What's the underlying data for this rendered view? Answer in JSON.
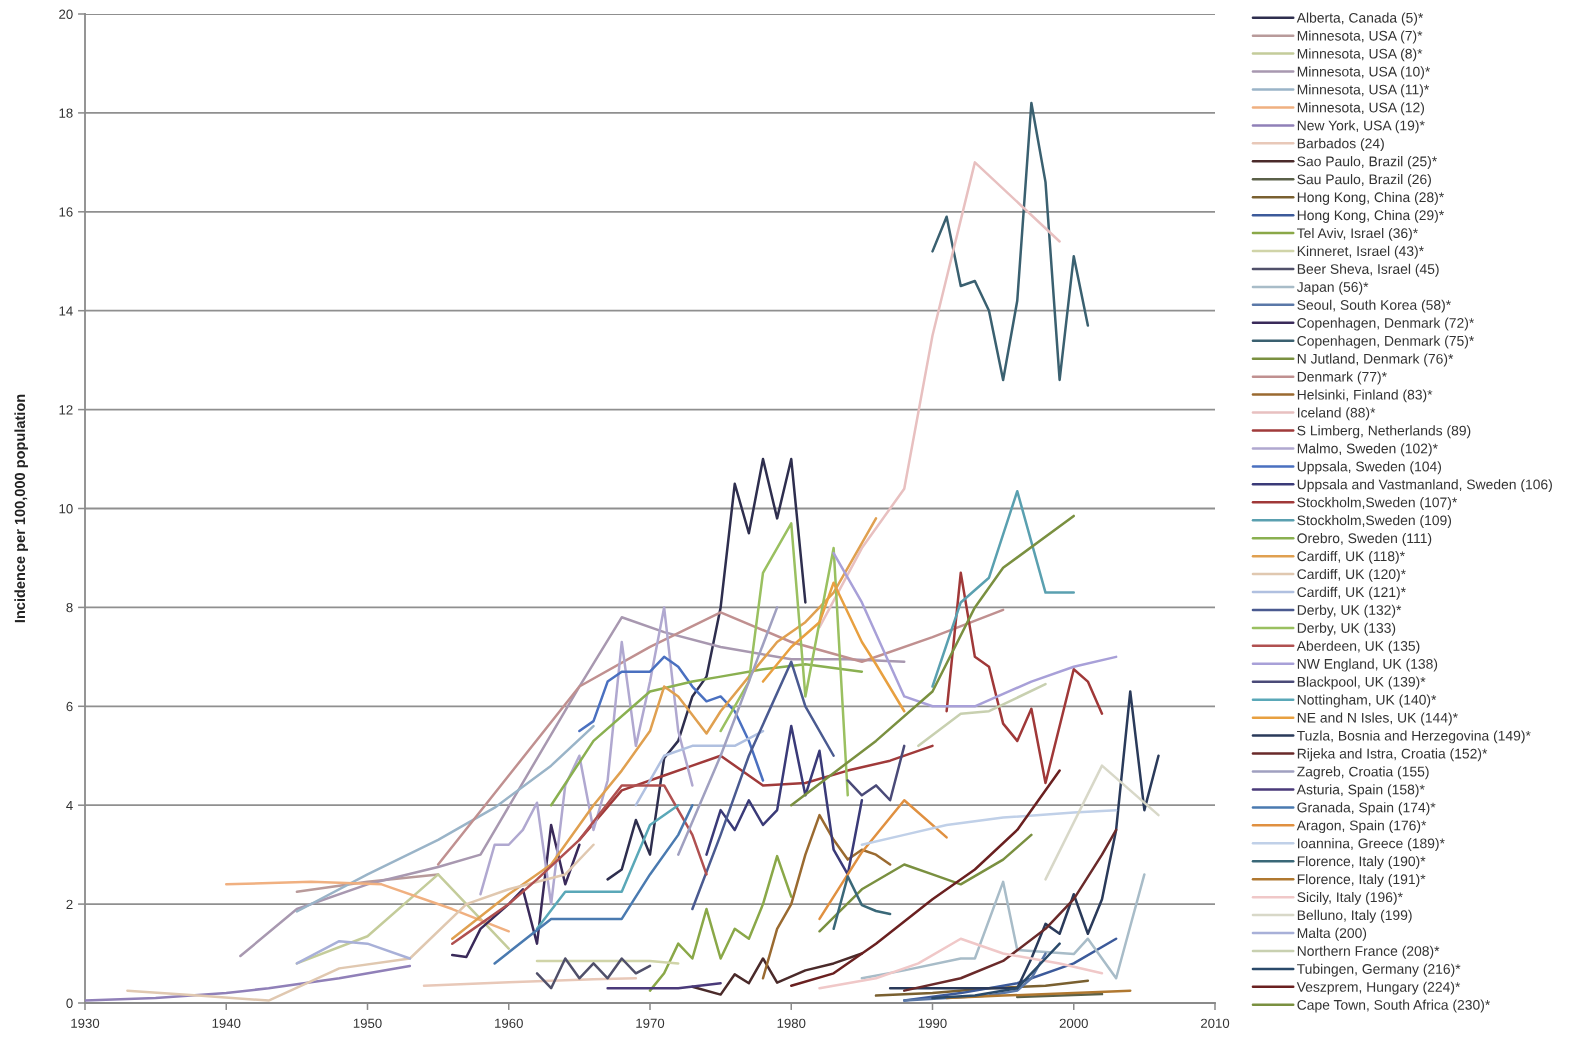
{
  "chart_data": {
    "type": "line",
    "ylabel": "Incidence per 100,000 population",
    "xlim": [
      1930,
      2010
    ],
    "xticks": [
      1930,
      1940,
      1950,
      1960,
      1970,
      1980,
      1990,
      2000,
      2010
    ],
    "ylim": [
      0,
      20
    ],
    "yticks": [
      0,
      2,
      4,
      6,
      8,
      10,
      12,
      14,
      16,
      18,
      20
    ],
    "grid": "y",
    "legend": "right",
    "line_style": "solid",
    "series": [
      {
        "name": "Alberta, Canada (5)*",
        "color": "#2e2e4e",
        "x": [
          1967,
          1968,
          1969,
          1970,
          1971,
          1972,
          1973,
          1974,
          1975,
          1976,
          1977,
          1978,
          1979,
          1980,
          1981
        ],
        "values": [
          2.5,
          2.7,
          3.7,
          3.0,
          4.95,
          5.3,
          6.2,
          6.6,
          8.0,
          10.5,
          9.5,
          11.0,
          9.8,
          11.0,
          8.1
        ]
      },
      {
        "name": "Minnesota, USA (7)*",
        "color": "#b89a9a",
        "x": [
          1945,
          1950,
          1955
        ],
        "values": [
          2.25,
          2.45,
          2.6
        ]
      },
      {
        "name": "Minnesota, USA (8)*",
        "color": "#c4cc9a",
        "x": [
          1945,
          1950,
          1955,
          1960
        ],
        "values": [
          0.8,
          1.35,
          2.6,
          1.1
        ]
      },
      {
        "name": "Minnesota, USA (10)*",
        "color": "#a898b0",
        "x": [
          1941,
          1945,
          1950,
          1955,
          1958,
          1965,
          1968,
          1971,
          1975,
          1980,
          1984,
          1988
        ],
        "values": [
          0.95,
          1.9,
          2.4,
          2.75,
          3.0,
          6.4,
          7.8,
          7.5,
          7.2,
          6.95,
          6.95,
          6.9
        ]
      },
      {
        "name": "Minnesota, USA (11)*",
        "color": "#9ab4c8",
        "x": [
          1945,
          1950,
          1955,
          1959,
          1963,
          1966
        ],
        "values": [
          1.85,
          2.6,
          3.3,
          3.95,
          4.8,
          5.6
        ]
      },
      {
        "name": "Minnesota, USA (12)",
        "color": "#f0b080",
        "x": [
          1940,
          1946,
          1951,
          1956,
          1960
        ],
        "values": [
          2.4,
          2.45,
          2.4,
          1.9,
          1.45
        ]
      },
      {
        "name": "New York, USA (19)*",
        "color": "#9080b8",
        "x": [
          1930,
          1935,
          1940,
          1943,
          1948,
          1953
        ],
        "values": [
          0.05,
          0.1,
          0.2,
          0.3,
          0.5,
          0.75
        ]
      },
      {
        "name": "Barbados (24)",
        "color": "#e8c8b8",
        "x": [
          1954,
          1960,
          1966,
          1969
        ],
        "values": [
          0.35,
          0.42,
          0.48,
          0.5
        ]
      },
      {
        "name": "Sao Paulo, Brazil (25)*",
        "color": "#4a2a2a",
        "x": [
          1973,
          1975,
          1976,
          1977,
          1978,
          1979,
          1981,
          1983,
          1985
        ],
        "values": [
          0.33,
          0.17,
          0.58,
          0.4,
          0.9,
          0.41,
          0.66,
          0.8,
          1.0
        ]
      },
      {
        "name": "Sau Paulo, Brazil (26)",
        "color": "#5a6048",
        "x": [
          1996,
          1999,
          2002
        ],
        "values": [
          0.12,
          0.15,
          0.18
        ]
      },
      {
        "name": "Hong Kong, China (28)*",
        "color": "#7a6030",
        "x": [
          1986,
          1990,
          1994,
          1998,
          2001
        ],
        "values": [
          0.15,
          0.2,
          0.3,
          0.35,
          0.45
        ]
      },
      {
        "name": "Hong Kong, China (29)*",
        "color": "#3c5a9a",
        "x": [
          1988,
          1992,
          1996,
          2000,
          2003
        ],
        "values": [
          0.05,
          0.2,
          0.4,
          0.8,
          1.3
        ]
      },
      {
        "name": "Tel Aviv, Israel (36)*",
        "color": "#8aa848",
        "x": [
          1970,
          1971,
          1972,
          1973,
          1974,
          1975,
          1976,
          1977,
          1978,
          1979,
          1980
        ],
        "values": [
          0.25,
          0.6,
          1.2,
          0.9,
          1.9,
          0.9,
          1.5,
          1.3,
          2.0,
          2.97,
          2.15
        ]
      },
      {
        "name": "Kinneret, Israel (43)*",
        "color": "#d0d4a8",
        "x": [
          1962,
          1966,
          1970,
          1972
        ],
        "values": [
          0.85,
          0.85,
          0.85,
          0.8
        ]
      },
      {
        "name": "Beer Sheva, Israel (45)",
        "color": "#50506a",
        "x": [
          1962,
          1963,
          1964,
          1965,
          1966,
          1967,
          1968,
          1969,
          1970
        ],
        "values": [
          0.6,
          0.3,
          0.9,
          0.5,
          0.8,
          0.5,
          0.9,
          0.6,
          0.75
        ]
      },
      {
        "name": "Japan (56)*",
        "color": "#a8bcc8",
        "x": [
          1985,
          1988,
          1992,
          1993,
          1995,
          1996,
          2000,
          2001,
          2003,
          2005
        ],
        "values": [
          0.5,
          0.66,
          0.9,
          0.9,
          2.45,
          1.07,
          0.99,
          1.3,
          0.5,
          2.6
        ]
      },
      {
        "name": "Seoul, South Korea (58)*",
        "color": "#5a78a8",
        "x": [
          1988,
          1991,
          1994,
          1996,
          1997,
          1998
        ],
        "values": [
          0.05,
          0.1,
          0.15,
          0.25,
          0.5,
          1.0
        ]
      },
      {
        "name": "Copenhagen, Denmark (72)*",
        "color": "#3a2a5a",
        "x": [
          1956,
          1957,
          1958,
          1960,
          1961,
          1962,
          1963,
          1964,
          1965
        ],
        "values": [
          0.97,
          0.93,
          1.5,
          2.0,
          2.3,
          1.2,
          3.6,
          2.4,
          3.2
        ]
      },
      {
        "name": "Copenhagen, Denmark (75)*",
        "color": "#3a6070",
        "x": [
          1990,
          1991,
          1992,
          1993,
          1994,
          1995,
          1996,
          1997,
          1998,
          1999,
          2000,
          2001
        ],
        "values": [
          15.2,
          15.9,
          14.5,
          14.6,
          14.0,
          12.6,
          14.2,
          18.2,
          16.6,
          12.6,
          15.1,
          13.7
        ]
      },
      {
        "name": "N Jutland, Denmark (76)*",
        "color": "#7a9040",
        "x": [
          1982,
          1985,
          1988,
          1990,
          1992,
          1995,
          1997
        ],
        "values": [
          1.45,
          2.3,
          2.8,
          2.6,
          2.4,
          2.9,
          3.4
        ]
      },
      {
        "name": "Denmark (77)*",
        "color": "#c09090",
        "x": [
          1955,
          1960,
          1965,
          1970,
          1975,
          1980,
          1985,
          1990,
          1995
        ],
        "values": [
          2.8,
          4.6,
          6.4,
          7.2,
          7.9,
          7.3,
          6.9,
          7.4,
          7.95
        ]
      },
      {
        "name": "Helsinki, Finland (83)*",
        "color": "#9a6a30",
        "x": [
          1978,
          1979,
          1980,
          1981,
          1982,
          1983,
          1984,
          1985,
          1986,
          1987
        ],
        "values": [
          0.5,
          1.5,
          2.0,
          3.0,
          3.8,
          3.3,
          2.9,
          3.1,
          3.0,
          2.8
        ]
      },
      {
        "name": "Iceland (88)*",
        "color": "#e8c0c0",
        "x": [
          1982,
          1985,
          1988,
          1990,
          1993,
          1999
        ],
        "values": [
          7.6,
          9.2,
          10.4,
          13.5,
          17.0,
          15.4
        ]
      },
      {
        "name": "S Limberg, Netherlands (89)",
        "color": "#a03a3a",
        "x": [
          1965,
          1968,
          1971,
          1973,
          1975,
          1978,
          1981,
          1984,
          1987,
          1990
        ],
        "values": [
          3.3,
          4.3,
          4.6,
          4.8,
          5.0,
          4.4,
          4.45,
          4.7,
          4.9,
          5.2
        ]
      },
      {
        "name": "Malmo, Sweden (102)*",
        "color": "#b0a8d0",
        "x": [
          1958,
          1959,
          1960,
          1961,
          1962,
          1963,
          1964,
          1965,
          1966,
          1967,
          1968,
          1969,
          1970,
          1971,
          1972,
          1973
        ],
        "values": [
          2.2,
          3.2,
          3.2,
          3.5,
          4.05,
          2.0,
          4.4,
          5.0,
          3.5,
          4.5,
          7.3,
          5.2,
          6.5,
          8.0,
          5.5,
          4.4
        ]
      },
      {
        "name": "Uppsala, Sweden (104)",
        "color": "#4a70c0",
        "x": [
          1965,
          1966,
          1967,
          1968,
          1970,
          1971,
          1972,
          1973,
          1974,
          1975,
          1976,
          1977,
          1978
        ],
        "values": [
          5.5,
          5.7,
          6.5,
          6.7,
          6.7,
          7.0,
          6.8,
          6.4,
          6.1,
          6.2,
          5.9,
          5.3,
          4.5
        ]
      },
      {
        "name": "Uppsala and Vastmanland, Sweden (106)",
        "color": "#3a3a78",
        "x": [
          1974,
          1975,
          1976,
          1977,
          1978,
          1979,
          1980,
          1981,
          1982,
          1983,
          1984,
          1985
        ],
        "values": [
          3.0,
          3.9,
          3.5,
          4.1,
          3.6,
          3.9,
          5.6,
          4.2,
          5.1,
          3.1,
          2.6,
          4.1
        ]
      },
      {
        "name": "Stockholm,Sweden (107)*",
        "color": "#a03838",
        "x": [
          1991,
          1992,
          1993,
          1994,
          1995,
          1996,
          1997,
          1998,
          2000,
          2001,
          2002
        ],
        "values": [
          5.9,
          8.7,
          7.0,
          6.8,
          5.65,
          5.3,
          5.95,
          4.45,
          6.75,
          6.5,
          5.85
        ]
      },
      {
        "name": "Stockholm,Sweden (109)",
        "color": "#5aa0b0",
        "x": [
          1990,
          1992,
          1994,
          1996,
          1998,
          2000
        ],
        "values": [
          6.4,
          8.1,
          8.6,
          10.35,
          8.3,
          8.3
        ]
      },
      {
        "name": "Orebro, Sweden (111)",
        "color": "#8ab050",
        "x": [
          1963,
          1966,
          1970,
          1973,
          1975,
          1978,
          1981,
          1985
        ],
        "values": [
          4.0,
          5.3,
          6.3,
          6.5,
          6.6,
          6.75,
          6.85,
          6.7
        ]
      },
      {
        "name": "Cardiff, UK (118)*",
        "color": "#e0a050",
        "x": [
          1956,
          1960,
          1963,
          1966,
          1968,
          1970,
          1971,
          1972,
          1974,
          1975,
          1977,
          1979,
          1981,
          1983,
          1986
        ],
        "values": [
          1.3,
          2.2,
          2.8,
          4.0,
          4.7,
          5.5,
          6.4,
          6.2,
          5.45,
          5.9,
          6.6,
          7.3,
          7.7,
          8.3,
          9.8
        ]
      },
      {
        "name": "Cardiff, UK (120)*",
        "color": "#e0c8b0",
        "x": [
          1933,
          1938,
          1943,
          1948,
          1953,
          1957,
          1960,
          1964,
          1966
        ],
        "values": [
          0.25,
          0.15,
          0.05,
          0.7,
          0.9,
          2.0,
          2.3,
          2.6,
          3.2
        ]
      },
      {
        "name": "Cardiff, UK (121)*",
        "color": "#b0c0e0",
        "x": [
          1969,
          1971,
          1973,
          1976,
          1978
        ],
        "values": [
          4.0,
          5.0,
          5.2,
          5.2,
          5.5
        ]
      },
      {
        "name": "Derby, UK (132)*",
        "color": "#4a5a90",
        "x": [
          1973,
          1975,
          1977,
          1980,
          1981,
          1983
        ],
        "values": [
          1.9,
          3.4,
          5.0,
          6.9,
          6.0,
          5.0
        ]
      },
      {
        "name": "Derby, UK (133)",
        "color": "#9ac060",
        "x": [
          1975,
          1977,
          1978,
          1979,
          1980,
          1981,
          1983,
          1984
        ],
        "values": [
          5.5,
          6.5,
          8.7,
          9.2,
          9.7,
          6.2,
          9.2,
          4.2
        ]
      },
      {
        "name": "Aberdeen, UK (135)",
        "color": "#b05050",
        "x": [
          1956,
          1958,
          1960,
          1962,
          1965,
          1968,
          1971,
          1973,
          1974
        ],
        "values": [
          1.2,
          1.6,
          2.0,
          2.5,
          3.3,
          4.4,
          4.4,
          3.4,
          2.6
        ]
      },
      {
        "name": "NW England, UK (138)",
        "color": "#a8a0d8",
        "x": [
          1983,
          1985,
          1988,
          1990,
          1993,
          1997,
          2000,
          2003
        ],
        "values": [
          9.1,
          8.1,
          6.2,
          6.0,
          6.0,
          6.5,
          6.8,
          7.0
        ]
      },
      {
        "name": "Blackpool, UK (139)*",
        "color": "#4a4a78",
        "x": [
          1984,
          1985,
          1986,
          1987,
          1988
        ],
        "values": [
          4.5,
          4.2,
          4.4,
          4.1,
          5.2
        ]
      },
      {
        "name": "Nottingham, UK (140)*",
        "color": "#5aa8b8",
        "x": [
          1962,
          1964,
          1968,
          1970,
          1972
        ],
        "values": [
          1.5,
          2.25,
          2.25,
          3.6,
          4.0
        ]
      },
      {
        "name": "NE and N Isles, UK (144)*",
        "color": "#e8a040",
        "x": [
          1978,
          1980,
          1982,
          1983,
          1985,
          1986,
          1988
        ],
        "values": [
          6.5,
          7.2,
          7.7,
          8.5,
          7.3,
          6.85,
          5.9
        ]
      },
      {
        "name": "Tuzla, Bosnia and Herzegovina (149)*",
        "color": "#2a3a5a",
        "x": [
          1987,
          1990,
          1994,
          1996,
          1997,
          1998,
          1999,
          2000,
          2001,
          2002,
          2003,
          2004,
          2005,
          2006
        ],
        "values": [
          0.3,
          0.3,
          0.3,
          0.3,
          0.9,
          1.6,
          1.4,
          2.2,
          1.4,
          2.1,
          3.5,
          6.3,
          3.9,
          5.0
        ]
      },
      {
        "name": "Rijeka and Istra, Croatia (152)*",
        "color": "#6a2a2a",
        "x": [
          1988,
          1992,
          1995,
          1998,
          2000,
          2002,
          2003
        ],
        "values": [
          0.25,
          0.5,
          0.85,
          1.5,
          2.1,
          3.0,
          3.5
        ]
      },
      {
        "name": "Zagreb, Croatia (155)",
        "color": "#a0a0c0",
        "x": [
          1972,
          1975,
          1977,
          1979
        ],
        "values": [
          3.0,
          5.0,
          6.5,
          8.0
        ]
      },
      {
        "name": "Asturia, Spain (158)*",
        "color": "#4a3a7a",
        "x": [
          1967,
          1970,
          1972,
          1975
        ],
        "values": [
          0.3,
          0.3,
          0.3,
          0.4
        ]
      },
      {
        "name": "Granada, Spain (174)*",
        "color": "#4a7ab0",
        "x": [
          1959,
          1963,
          1968,
          1970,
          1972,
          1973
        ],
        "values": [
          0.8,
          1.7,
          1.7,
          2.6,
          3.4,
          4.0
        ]
      },
      {
        "name": "Aragon, Spain (176)*",
        "color": "#e09040",
        "x": [
          1982,
          1985,
          1988,
          1991
        ],
        "values": [
          1.7,
          3.05,
          4.1,
          3.35
        ]
      },
      {
        "name": "Ioannina, Greece (189)*",
        "color": "#c0d0e8",
        "x": [
          1985,
          1988,
          1991,
          1995,
          2000,
          2003
        ],
        "values": [
          3.2,
          3.4,
          3.6,
          3.75,
          3.85,
          3.9
        ]
      },
      {
        "name": "Florence, Italy (190)*",
        "color": "#3a6878",
        "x": [
          1983,
          1984,
          1985,
          1986,
          1987
        ],
        "values": [
          1.5,
          2.56,
          1.98,
          1.86,
          1.8
        ]
      },
      {
        "name": "Florence, Italy (191)*",
        "color": "#b07830",
        "x": [
          1991,
          1995,
          2000,
          2004
        ],
        "values": [
          0.1,
          0.15,
          0.2,
          0.25
        ]
      },
      {
        "name": "Sicily, Italy (196)*",
        "color": "#f0c8c8",
        "x": [
          1982,
          1986,
          1989,
          1992,
          1995,
          1999,
          2002
        ],
        "values": [
          0.3,
          0.5,
          0.8,
          1.3,
          1.0,
          0.8,
          0.6
        ]
      },
      {
        "name": "Belluno, Italy (199)",
        "color": "#d8d8c8",
        "x": [
          1998,
          2002,
          2006
        ],
        "values": [
          2.5,
          4.8,
          3.8
        ]
      },
      {
        "name": "Malta (200)",
        "color": "#a8b0d8",
        "x": [
          1945,
          1948,
          1950,
          1953
        ],
        "values": [
          0.8,
          1.25,
          1.2,
          0.9
        ]
      },
      {
        "name": "Northern France (208)*",
        "color": "#c8d0b0",
        "x": [
          1989,
          1992,
          1994,
          1998
        ],
        "values": [
          5.2,
          5.85,
          5.9,
          6.45
        ]
      },
      {
        "name": "Tubingen, Germany (216)*",
        "color": "#2a4a6a",
        "x": [
          1990,
          1993,
          1996,
          1997,
          1998,
          1999
        ],
        "values": [
          0.1,
          0.15,
          0.3,
          0.6,
          0.9,
          1.2
        ]
      },
      {
        "name": "Veszprem, Hungary (224)*",
        "color": "#6a2020",
        "x": [
          1980,
          1983,
          1986,
          1990,
          1993,
          1996,
          1999
        ],
        "values": [
          0.35,
          0.6,
          1.2,
          2.1,
          2.7,
          3.5,
          4.7
        ]
      },
      {
        "name": "Cape Town, South Africa (230)*",
        "color": "#7a9040",
        "x": [
          1980,
          1986,
          1990,
          1993,
          1995,
          2000
        ],
        "values": [
          4.0,
          5.3,
          6.3,
          8.0,
          8.8,
          9.85
        ]
      }
    ]
  }
}
